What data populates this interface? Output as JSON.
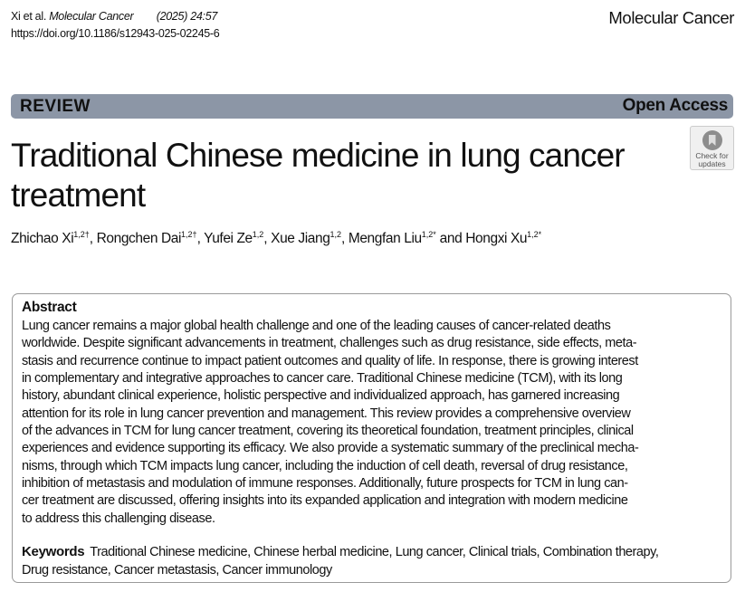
{
  "header": {
    "citation_author": "Xi et al.",
    "citation_journal": "Molecular Cancer",
    "citation_volume": "(2025) 24:57",
    "doi": "https://doi.org/10.1186/s12943-025-02245-6",
    "journal_name": "Molecular Cancer"
  },
  "banner": {
    "type": "REVIEW",
    "access": "Open Access",
    "color": "#8c96a6"
  },
  "title": "Traditional Chinese medicine in lung cancer treatment",
  "check_updates": {
    "line1": "Check for",
    "line2": "updates"
  },
  "authors": [
    {
      "name": "Zhichao Xi",
      "sup": "1,2†"
    },
    {
      "name": "Rongchen Dai",
      "sup": "1,2†"
    },
    {
      "name": "Yufei Ze",
      "sup": "1,2"
    },
    {
      "name": "Xue Jiang",
      "sup": "1,2"
    },
    {
      "name": "Mengfan Liu",
      "sup": "1,2*"
    },
    {
      "name": "Hongxi Xu",
      "sup": "1,2*"
    }
  ],
  "authors_sep": ", ",
  "authors_and": " and ",
  "abstract": {
    "heading": "Abstract",
    "lines": [
      "Lung cancer remains a major global health challenge and one of the leading causes of cancer-related deaths",
      "worldwide. Despite significant advancements in treatment, challenges such as drug resistance, side effects, meta-",
      "stasis and recurrence continue to impact patient outcomes and quality of life. In response, there is growing interest",
      "in complementary and integrative approaches to cancer care. Traditional Chinese medicine (TCM), with its long",
      "history, abundant clinical experience, holistic perspective and individualized approach, has garnered increasing",
      "attention for its role in lung cancer prevention and management. This review provides a comprehensive overview",
      "of the advances in TCM for lung cancer treatment, covering its theoretical foundation, treatment principles, clinical",
      "experiences and evidence supporting its efficacy. We also provide a systematic summary of the preclinical mecha-",
      "nisms, through which TCM impacts lung cancer, including the induction of cell death, reversal of drug resistance,",
      "inhibition of metastasis and modulation of immune responses. Additionally, future prospects for TCM in lung can-",
      "cer treatment are discussed, offering insights into its expanded application and integration with modern medicine",
      "to address this challenging disease."
    ]
  },
  "keywords": {
    "label": "Keywords",
    "line1": "Traditional Chinese medicine, Chinese herbal medicine, Lung cancer, Clinical trials, Combination therapy,",
    "line2": "Drug resistance, Cancer metastasis, Cancer immunology"
  }
}
